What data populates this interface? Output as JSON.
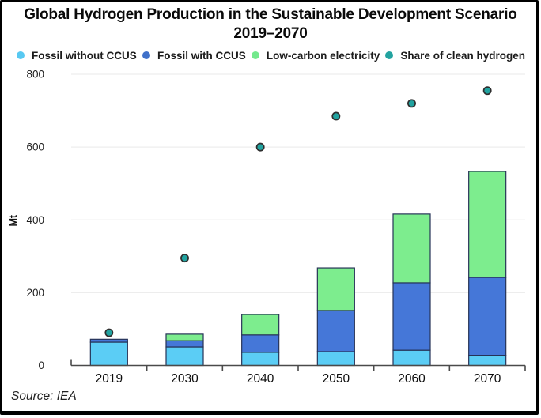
{
  "title": {
    "line1": "Global Hydrogen Production in the Sustainable Development Scenario",
    "line2": "2019–2070"
  },
  "legend": [
    {
      "label": "Fossil without CCUS",
      "color": "#58C9F2",
      "marker": "circle"
    },
    {
      "label": "Fossil with CCUS",
      "color": "#3F70C9",
      "marker": "circle"
    },
    {
      "label": "Low-carbon electricity",
      "color": "#74E98D",
      "marker": "circle"
    },
    {
      "label": "Share of clean hydrogen",
      "color": "#23A3A0",
      "marker": "circle"
    }
  ],
  "source": "Source: IEA",
  "chart_data": {
    "type": "bar",
    "stacked": true,
    "title": "Global Hydrogen Production in the Sustainable Development Scenario 2019–2070",
    "categories": [
      "2019",
      "2030",
      "2040",
      "2050",
      "2060",
      "2070"
    ],
    "series": [
      {
        "name": "Fossil without CCUS",
        "color": "#5BCDF5",
        "values": [
          64,
          51,
          36,
          38,
          42,
          28
        ]
      },
      {
        "name": "Fossil with CCUS",
        "color": "#4577D8",
        "values": [
          8,
          17,
          48,
          113,
          185,
          214
        ]
      },
      {
        "name": "Low-carbon electricity",
        "color": "#7DED8E",
        "values": [
          0,
          18,
          56,
          117,
          189,
          291
        ]
      }
    ],
    "stack_totals": [
      72,
      86,
      140,
      268,
      416,
      533
    ],
    "scatter_series": {
      "name": "Share of clean hydrogen",
      "color": "#21A3A0",
      "note": "plotted against the left Mt axis; no right axis shown",
      "values": [
        90,
        295,
        600,
        685,
        720,
        755
      ]
    },
    "xlabel": "",
    "ylabel": "Mt",
    "yticks": [
      0,
      200,
      400,
      600,
      800
    ],
    "ylim": [
      0,
      800
    ],
    "grid": true,
    "gridline_color": "#ededed",
    "axis_color": "#4a4a4a",
    "bar_outline_color": "#263357",
    "dot_outline_color": "#2e2e2e",
    "legend_position": "top"
  }
}
